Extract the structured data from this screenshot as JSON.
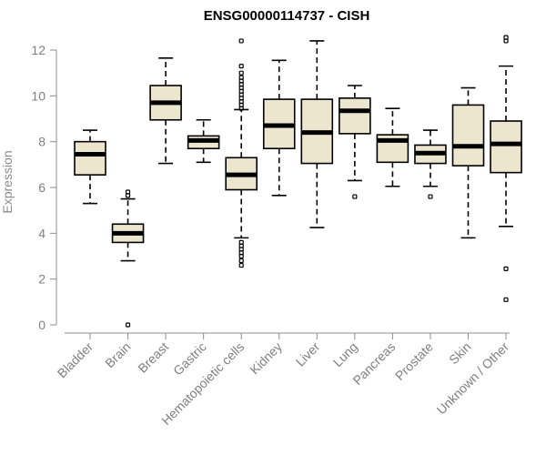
{
  "chart_data": {
    "type": "boxplot",
    "title": "ENSG00000114737 - CISH",
    "xlabel": "",
    "ylabel": "Expression",
    "ylim": [
      0,
      12
    ],
    "yticks": [
      0,
      2,
      4,
      6,
      8,
      10,
      12
    ],
    "grid": false,
    "box_color": "#ede6cf",
    "categories": [
      "Bladder",
      "Brain",
      "Breast",
      "Gastric",
      "Hematopoietic cells",
      "Kidney",
      "Liver",
      "Lung",
      "Pancreas",
      "Prostate",
      "Skin",
      "Unknown / Other"
    ],
    "boxes": [
      {
        "label": "Bladder",
        "whislo": 5.3,
        "q1": 6.55,
        "med": 7.45,
        "q3": 8.0,
        "whishi": 8.5,
        "fliers": []
      },
      {
        "label": "Brain",
        "whislo": 2.8,
        "q1": 3.6,
        "med": 4.0,
        "q3": 4.4,
        "whishi": 5.5,
        "fliers": [
          0.0,
          5.65,
          5.8
        ]
      },
      {
        "label": "Breast",
        "whislo": 7.05,
        "q1": 8.95,
        "med": 9.7,
        "q3": 10.45,
        "whishi": 11.65,
        "fliers": []
      },
      {
        "label": "Gastric",
        "whislo": 7.1,
        "q1": 7.7,
        "med": 8.05,
        "q3": 8.25,
        "whishi": 8.95,
        "fliers": []
      },
      {
        "label": "Hematopoietic cells",
        "whislo": 3.8,
        "q1": 5.9,
        "med": 6.55,
        "q3": 7.3,
        "whishi": 9.4,
        "fliers": [
          2.6,
          2.8,
          3.0,
          3.15,
          3.3,
          3.45,
          3.6,
          9.45,
          9.6,
          9.75,
          9.9,
          10.05,
          10.2,
          10.35,
          10.5,
          10.65,
          10.8,
          11.0,
          11.3,
          12.4
        ]
      },
      {
        "label": "Kidney",
        "whislo": 5.65,
        "q1": 7.7,
        "med": 8.7,
        "q3": 9.85,
        "whishi": 11.55,
        "fliers": []
      },
      {
        "label": "Liver",
        "whislo": 4.25,
        "q1": 7.05,
        "med": 8.4,
        "q3": 9.85,
        "whishi": 12.4,
        "fliers": []
      },
      {
        "label": "Lung",
        "whislo": 6.3,
        "q1": 8.35,
        "med": 9.35,
        "q3": 9.9,
        "whishi": 10.45,
        "fliers": [
          5.6
        ]
      },
      {
        "label": "Pancreas",
        "whislo": 6.05,
        "q1": 7.1,
        "med": 8.05,
        "q3": 8.3,
        "whishi": 9.45,
        "fliers": []
      },
      {
        "label": "Prostate",
        "whislo": 6.05,
        "q1": 7.05,
        "med": 7.5,
        "q3": 7.85,
        "whishi": 8.5,
        "fliers": [
          5.6
        ]
      },
      {
        "label": "Skin",
        "whislo": 3.8,
        "q1": 6.95,
        "med": 7.8,
        "q3": 9.6,
        "whishi": 10.35,
        "fliers": []
      },
      {
        "label": "Unknown / Other",
        "whislo": 4.3,
        "q1": 6.65,
        "med": 7.9,
        "q3": 8.9,
        "whishi": 11.3,
        "fliers": [
          1.1,
          2.45,
          12.4,
          12.55
        ]
      }
    ]
  }
}
